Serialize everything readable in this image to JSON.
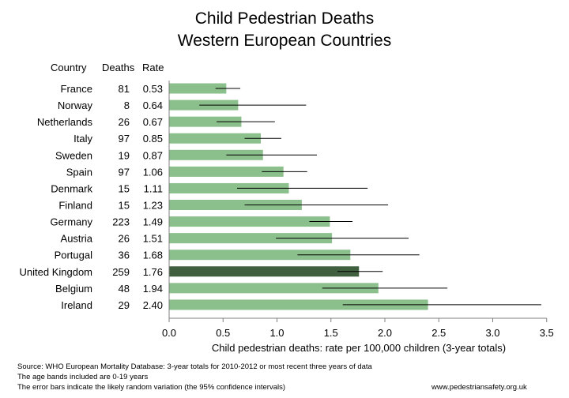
{
  "chart_data": {
    "type": "bar",
    "orientation": "horizontal",
    "title_lines": [
      "Child Pedestrian Deaths",
      "Western European Countries"
    ],
    "table_headers": {
      "country": "Country",
      "deaths": "Deaths",
      "rate": "Rate"
    },
    "categories": [
      "France",
      "Norway",
      "Netherlands",
      "Italy",
      "Sweden",
      "Spain",
      "Denmark",
      "Finland",
      "Germany",
      "Austria",
      "Portugal",
      "United Kingdom",
      "Belgium",
      "Ireland"
    ],
    "deaths": [
      "81",
      "8",
      "26",
      "97",
      "19",
      "97",
      "15",
      "15",
      "223",
      "26",
      "36",
      "259",
      "48",
      "29"
    ],
    "rate_labels": [
      "0.53",
      "0.64",
      "0.67",
      "0.85",
      "0.87",
      "1.06",
      "1.11",
      "1.23",
      "1.49",
      "1.51",
      "1.68",
      "1.76",
      "1.94",
      "2.40"
    ],
    "values": [
      0.53,
      0.64,
      0.67,
      0.85,
      0.87,
      1.06,
      1.11,
      1.23,
      1.49,
      1.51,
      1.68,
      1.76,
      1.94,
      2.4
    ],
    "ci_low": [
      0.43,
      0.28,
      0.44,
      0.7,
      0.53,
      0.86,
      0.63,
      0.7,
      1.3,
      0.99,
      1.19,
      1.56,
      1.42,
      1.61
    ],
    "ci_high": [
      0.66,
      1.27,
      0.98,
      1.04,
      1.37,
      1.28,
      1.84,
      2.03,
      1.7,
      2.22,
      2.32,
      1.98,
      2.58,
      3.45
    ],
    "highlight_index": 11,
    "xlabel": "Child pedestrian deaths: rate per 100,000 children (3-year totals)",
    "xlim": [
      0,
      3.5
    ],
    "xticks": [
      "0.0",
      "0.5",
      "1.0",
      "1.5",
      "2.0",
      "2.5",
      "3.0",
      "3.5"
    ],
    "grid": false,
    "colors": {
      "bar": "#8bbf8b",
      "highlight": "#3f5f3f",
      "error_bar": "#000000",
      "axis": "#808080"
    }
  },
  "footer": {
    "source": "Source: WHO European Mortality Database: 3-year totals for 2010-2012 or most recent three years of data",
    "age_note": "The age bands included are 0-19 years",
    "error_note": "The error bars indicate the likely random variation (the 95% confidence intervals)",
    "website": "www.pedestriansafety.org.uk"
  }
}
